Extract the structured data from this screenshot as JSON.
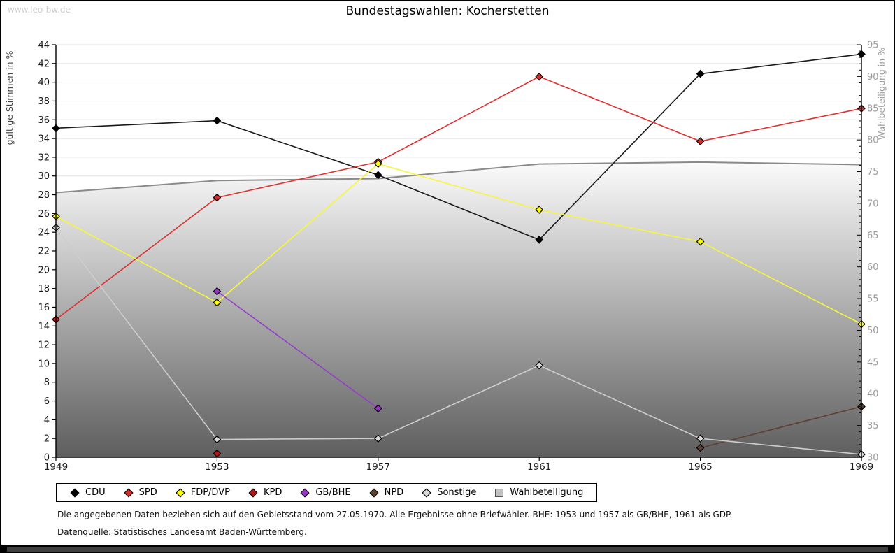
{
  "frame": {
    "watermark": "www.leo-bw.de",
    "bottom_bar_color": "#3e3e3e"
  },
  "title": "Bundestagswahlen: Kocherstetten",
  "chart_data": {
    "type": "line",
    "title": "Bundestagswahlen: Kocherstetten",
    "x_categories": [
      1949,
      1953,
      1957,
      1961,
      1965,
      1969
    ],
    "y_left_axis": {
      "label": "gültige Stimmen in %",
      "min": 0,
      "max": 44,
      "tick_step": 2
    },
    "y_right_axis": {
      "label": "Wahlbeteiligung in %",
      "min": 30,
      "max": 95,
      "tick_step": 5,
      "minor_step": 1
    },
    "grid": "horizontal",
    "legend_position": "bottom",
    "series": [
      {
        "name": "CDU",
        "type": "line",
        "axis": "left",
        "line_color": "#1a1a1a",
        "marker": "diamond",
        "marker_fill": "#000000",
        "values": [
          35.1,
          35.9,
          30.1,
          23.2,
          40.9,
          43.0
        ]
      },
      {
        "name": "SPD",
        "type": "line",
        "axis": "left",
        "line_color": "#e03131",
        "marker": "diamond",
        "marker_fill": "#d32f2f",
        "values": [
          14.7,
          27.7,
          31.5,
          40.6,
          33.7,
          37.2
        ]
      },
      {
        "name": "FDP/DVP",
        "type": "line",
        "axis": "left",
        "line_color": "#f6f63a",
        "marker": "diamond",
        "marker_fill": "#ffff00",
        "values": [
          25.7,
          16.5,
          31.3,
          26.4,
          23.0,
          14.2
        ]
      },
      {
        "name": "KPD",
        "type": "line",
        "axis": "left",
        "line_color": "#a51616",
        "marker": "diamond",
        "marker_fill": "#b01818",
        "values": [
          null,
          0.4,
          null,
          null,
          null,
          null
        ]
      },
      {
        "name": "GB/BHE",
        "type": "line",
        "axis": "left",
        "line_color": "#9340c9",
        "marker": "diamond",
        "marker_fill": "#9933cc",
        "values": [
          null,
          17.7,
          5.2,
          null,
          null,
          null
        ]
      },
      {
        "name": "NPD",
        "type": "line",
        "axis": "left",
        "line_color": "#5d4032",
        "marker": "diamond",
        "marker_fill": "#5d4032",
        "values": [
          null,
          null,
          null,
          null,
          1.0,
          5.4
        ]
      },
      {
        "name": "Sonstige",
        "type": "line",
        "axis": "left",
        "line_color": "#cdcdcd",
        "marker": "diamond",
        "marker_fill": "#d9d9d9",
        "values": [
          24.5,
          1.9,
          2.0,
          9.8,
          2.0,
          0.3
        ]
      },
      {
        "name": "Wahlbeteiligung",
        "type": "area",
        "axis": "right",
        "line_color": "#8a8a8a",
        "marker": "square",
        "marker_fill": "#c0c0c0",
        "area_gradient": [
          "#fbfbfb",
          "#5e5e5e"
        ],
        "values": [
          71.7,
          73.6,
          73.9,
          76.2,
          76.5,
          76.1
        ]
      }
    ]
  },
  "footnotes": [
    "Die angegebenen Daten beziehen sich auf den Gebietsstand vom 27.05.1970. Alle Ergebnisse ohne Briefwähler. BHE: 1953 und 1957 als GB/BHE, 1961 als GDP.",
    "Datenquelle: Statistisches Landesamt Baden-Württemberg."
  ]
}
